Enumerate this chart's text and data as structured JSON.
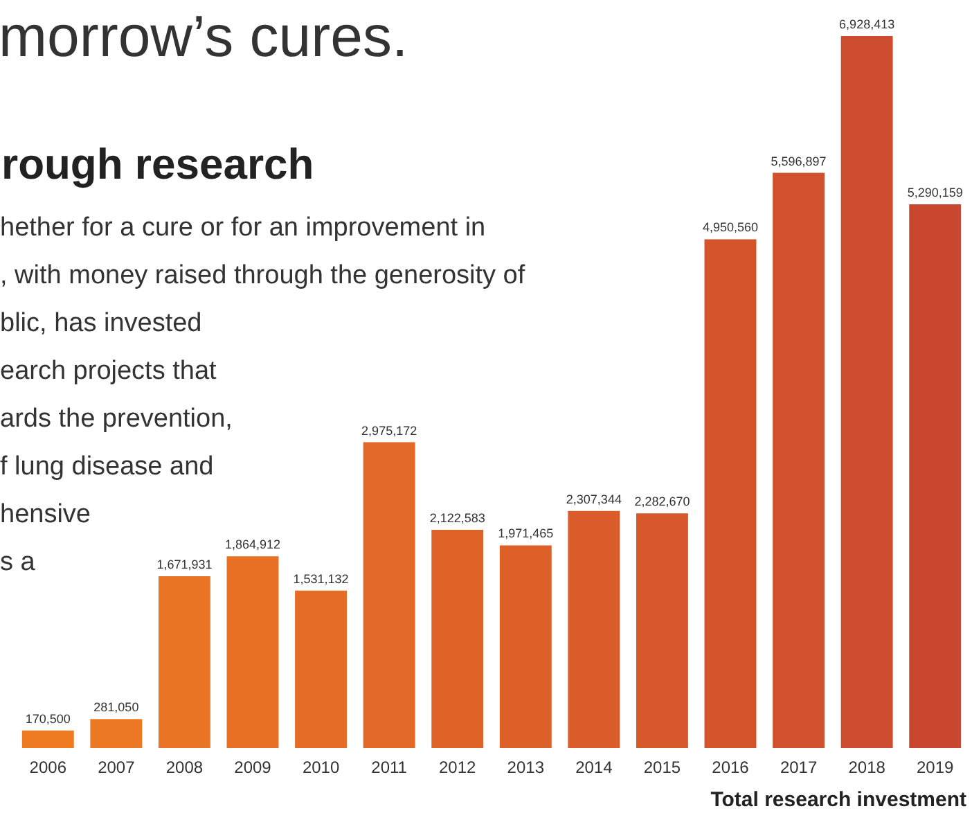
{
  "chart_data": {
    "type": "bar",
    "title": "morrow’s cures.",
    "subtitle": "rough research",
    "xlabel": "Total research investment",
    "annotations": [
      "hether for a cure or for an improvement in",
      ", with money raised through the generosity of",
      "blic, has invested",
      "earch projects that",
      "ards the prevention,",
      "f lung disease and",
      "hensive",
      "s a"
    ],
    "categories": [
      "2006",
      "2007",
      "2008",
      "2009",
      "2010",
      "2011",
      "2012",
      "2013",
      "2014",
      "2015",
      "2016",
      "2017",
      "2018",
      "2019"
    ],
    "values": [
      170500,
      281050,
      1671931,
      1864912,
      1531132,
      2975172,
      2122583,
      1971465,
      2307344,
      2282670,
      4950560,
      5596897,
      6928413,
      5290159
    ],
    "colors": [
      "#ee7b22",
      "#ec7823",
      "#e97424",
      "#e77025",
      "#e56c26",
      "#e26827",
      "#e06428",
      "#dd6029",
      "#da5c2a",
      "#d7582b",
      "#d4542c",
      "#d1502d",
      "#cd4b2e",
      "#c9472f"
    ],
    "value_labels": [
      "170,500",
      "281,050",
      "1,671,931",
      "1,864,912",
      "1,531,132",
      "2,975,172",
      "2,122,583",
      "1,971,465",
      "2,307,344",
      "2,282,670",
      "4,950,560",
      "5,596,897",
      "6,928,413",
      "5,290,159"
    ]
  }
}
